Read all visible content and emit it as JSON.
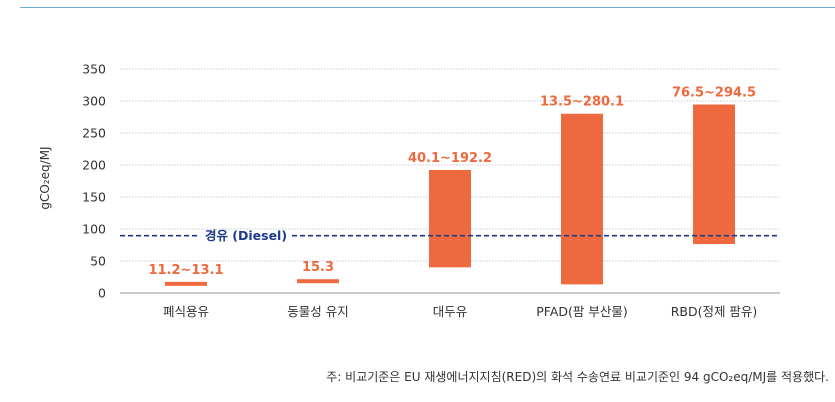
{
  "chart_data": {
    "type": "bar",
    "subtype": "floating-range",
    "ylabel": "gCO₂eq/MJ",
    "ylim": [
      0,
      350
    ],
    "yticks": [
      0,
      50,
      100,
      150,
      200,
      250,
      300,
      350
    ],
    "grid": true,
    "categories": [
      "폐식용유",
      "동물성 유지",
      "대두유",
      "PFAD(팜 부산물)",
      "RBD(정제 팜유)"
    ],
    "ranges": [
      [
        11.2,
        13.1
      ],
      [
        15.3,
        15.3
      ],
      [
        40.1,
        192.2
      ],
      [
        13.5,
        280.1
      ],
      [
        76.5,
        294.5
      ]
    ],
    "data_labels": [
      "11.2~13.1",
      "15.3",
      "40.1~192.2",
      "13.5~280.1",
      "76.5~294.5"
    ],
    "reference_line": {
      "value": 89.5,
      "label": "경유 (Diesel)",
      "color": "#1e3a8a"
    },
    "bar_color": "#ee6a3e"
  },
  "footnote": "주: 비교기준은 EU 재생에너지지침(RED)의 화석 수송연료 비교기준인 94 gCO₂eq/MJ를 적용했다."
}
